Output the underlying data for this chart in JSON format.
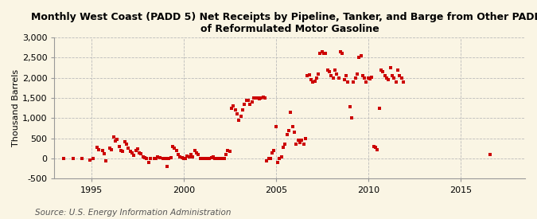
{
  "title": "Monthly West Coast (PADD 5) Net Receipts by Pipeline, Tanker, and Barge from Other PADDs\nof Reformulated Motor Gasoline",
  "ylabel": "Thousand Barrels",
  "source": "Source: U.S. Energy Information Administration",
  "background_color": "#FAF5E4",
  "plot_background_color": "#FAF5E4",
  "marker_color": "#CC0000",
  "marker_size": 9,
  "xlim": [
    1993.0,
    2018.5
  ],
  "ylim": [
    -500,
    3000
  ],
  "yticks": [
    -500,
    0,
    500,
    1000,
    1500,
    2000,
    2500,
    3000
  ],
  "xticks": [
    1995,
    2000,
    2005,
    2010,
    2015
  ],
  "grid_color": "#BBBBBB",
  "title_fontsize": 9.0,
  "ylabel_fontsize": 8,
  "tick_fontsize": 8,
  "source_fontsize": 7.5,
  "data": [
    [
      1993.5,
      0
    ],
    [
      1994.0,
      0
    ],
    [
      1994.5,
      0
    ],
    [
      1994.9,
      -30
    ],
    [
      1995.1,
      0
    ],
    [
      1995.3,
      280
    ],
    [
      1995.4,
      220
    ],
    [
      1995.6,
      200
    ],
    [
      1995.7,
      130
    ],
    [
      1995.8,
      -60
    ],
    [
      1996.0,
      260
    ],
    [
      1996.1,
      220
    ],
    [
      1996.2,
      530
    ],
    [
      1996.3,
      440
    ],
    [
      1996.4,
      480
    ],
    [
      1996.5,
      300
    ],
    [
      1996.6,
      200
    ],
    [
      1996.7,
      180
    ],
    [
      1996.8,
      420
    ],
    [
      1996.9,
      350
    ],
    [
      1997.0,
      250
    ],
    [
      1997.1,
      180
    ],
    [
      1997.2,
      150
    ],
    [
      1997.3,
      80
    ],
    [
      1997.4,
      200
    ],
    [
      1997.5,
      240
    ],
    [
      1997.6,
      150
    ],
    [
      1997.7,
      120
    ],
    [
      1997.8,
      50
    ],
    [
      1997.9,
      30
    ],
    [
      1998.0,
      0
    ],
    [
      1998.1,
      -100
    ],
    [
      1998.2,
      0
    ],
    [
      1998.4,
      0
    ],
    [
      1998.5,
      0
    ],
    [
      1998.6,
      50
    ],
    [
      1998.7,
      30
    ],
    [
      1998.9,
      10
    ],
    [
      1999.0,
      0
    ],
    [
      1999.1,
      -200
    ],
    [
      1999.2,
      0
    ],
    [
      1999.3,
      30
    ],
    [
      1999.4,
      300
    ],
    [
      1999.5,
      250
    ],
    [
      1999.6,
      200
    ],
    [
      1999.7,
      100
    ],
    [
      1999.8,
      50
    ],
    [
      1999.9,
      20
    ],
    [
      2000.0,
      0
    ],
    [
      2000.1,
      0
    ],
    [
      2000.2,
      60
    ],
    [
      2000.3,
      40
    ],
    [
      2000.4,
      100
    ],
    [
      2000.5,
      50
    ],
    [
      2000.6,
      200
    ],
    [
      2000.7,
      150
    ],
    [
      2000.8,
      100
    ],
    [
      2000.9,
      10
    ],
    [
      2001.0,
      0
    ],
    [
      2001.1,
      0
    ],
    [
      2001.2,
      0
    ],
    [
      2001.3,
      0
    ],
    [
      2001.4,
      0
    ],
    [
      2001.5,
      30
    ],
    [
      2001.6,
      50
    ],
    [
      2001.7,
      0
    ],
    [
      2001.8,
      0
    ],
    [
      2001.9,
      0
    ],
    [
      2002.0,
      0
    ],
    [
      2002.1,
      0
    ],
    [
      2002.2,
      0
    ],
    [
      2002.3,
      100
    ],
    [
      2002.4,
      200
    ],
    [
      2002.5,
      180
    ],
    [
      2002.6,
      1250
    ],
    [
      2002.7,
      1300
    ],
    [
      2002.8,
      1200
    ],
    [
      2002.9,
      1100
    ],
    [
      2003.0,
      950
    ],
    [
      2003.1,
      1050
    ],
    [
      2003.2,
      1200
    ],
    [
      2003.3,
      1350
    ],
    [
      2003.4,
      1450
    ],
    [
      2003.5,
      1450
    ],
    [
      2003.6,
      1350
    ],
    [
      2003.7,
      1400
    ],
    [
      2003.8,
      1500
    ],
    [
      2003.9,
      1500
    ],
    [
      2004.0,
      1500
    ],
    [
      2004.1,
      1480
    ],
    [
      2004.2,
      1500
    ],
    [
      2004.3,
      1520
    ],
    [
      2004.4,
      1500
    ],
    [
      2004.5,
      -50
    ],
    [
      2004.6,
      0
    ],
    [
      2004.7,
      0
    ],
    [
      2004.8,
      150
    ],
    [
      2004.9,
      200
    ],
    [
      2005.0,
      800
    ],
    [
      2005.1,
      -100
    ],
    [
      2005.2,
      0
    ],
    [
      2005.3,
      50
    ],
    [
      2005.4,
      280
    ],
    [
      2005.5,
      350
    ],
    [
      2005.6,
      600
    ],
    [
      2005.7,
      700
    ],
    [
      2005.8,
      1150
    ],
    [
      2005.9,
      800
    ],
    [
      2006.0,
      650
    ],
    [
      2006.1,
      350
    ],
    [
      2006.2,
      450
    ],
    [
      2006.3,
      400
    ],
    [
      2006.4,
      450
    ],
    [
      2006.5,
      350
    ],
    [
      2006.6,
      500
    ],
    [
      2006.7,
      2050
    ],
    [
      2006.8,
      2070
    ],
    [
      2006.9,
      1950
    ],
    [
      2007.0,
      1900
    ],
    [
      2007.1,
      1920
    ],
    [
      2007.2,
      2000
    ],
    [
      2007.3,
      2100
    ],
    [
      2007.4,
      2600
    ],
    [
      2007.5,
      2650
    ],
    [
      2007.6,
      2600
    ],
    [
      2007.7,
      2600
    ],
    [
      2007.8,
      2200
    ],
    [
      2007.9,
      2150
    ],
    [
      2008.0,
      2050
    ],
    [
      2008.1,
      2000
    ],
    [
      2008.2,
      2200
    ],
    [
      2008.3,
      2100
    ],
    [
      2008.4,
      2000
    ],
    [
      2008.5,
      2650
    ],
    [
      2008.6,
      2600
    ],
    [
      2008.7,
      1950
    ],
    [
      2008.8,
      2050
    ],
    [
      2008.9,
      1900
    ],
    [
      2009.0,
      1280
    ],
    [
      2009.1,
      1000
    ],
    [
      2009.2,
      1900
    ],
    [
      2009.3,
      2000
    ],
    [
      2009.4,
      2100
    ],
    [
      2009.5,
      2500
    ],
    [
      2009.6,
      2550
    ],
    [
      2009.7,
      2050
    ],
    [
      2009.8,
      2000
    ],
    [
      2009.9,
      1900
    ],
    [
      2010.0,
      2000
    ],
    [
      2010.1,
      1980
    ],
    [
      2010.2,
      2010
    ],
    [
      2010.3,
      300
    ],
    [
      2010.4,
      280
    ],
    [
      2010.5,
      220
    ],
    [
      2010.6,
      1250
    ],
    [
      2010.7,
      2200
    ],
    [
      2010.8,
      2150
    ],
    [
      2010.9,
      2050
    ],
    [
      2011.0,
      2000
    ],
    [
      2011.1,
      1950
    ],
    [
      2011.2,
      2250
    ],
    [
      2011.3,
      2050
    ],
    [
      2011.4,
      2000
    ],
    [
      2011.5,
      1900
    ],
    [
      2011.6,
      2200
    ],
    [
      2011.7,
      2050
    ],
    [
      2011.8,
      2000
    ],
    [
      2011.9,
      1900
    ],
    [
      2016.6,
      100
    ]
  ]
}
